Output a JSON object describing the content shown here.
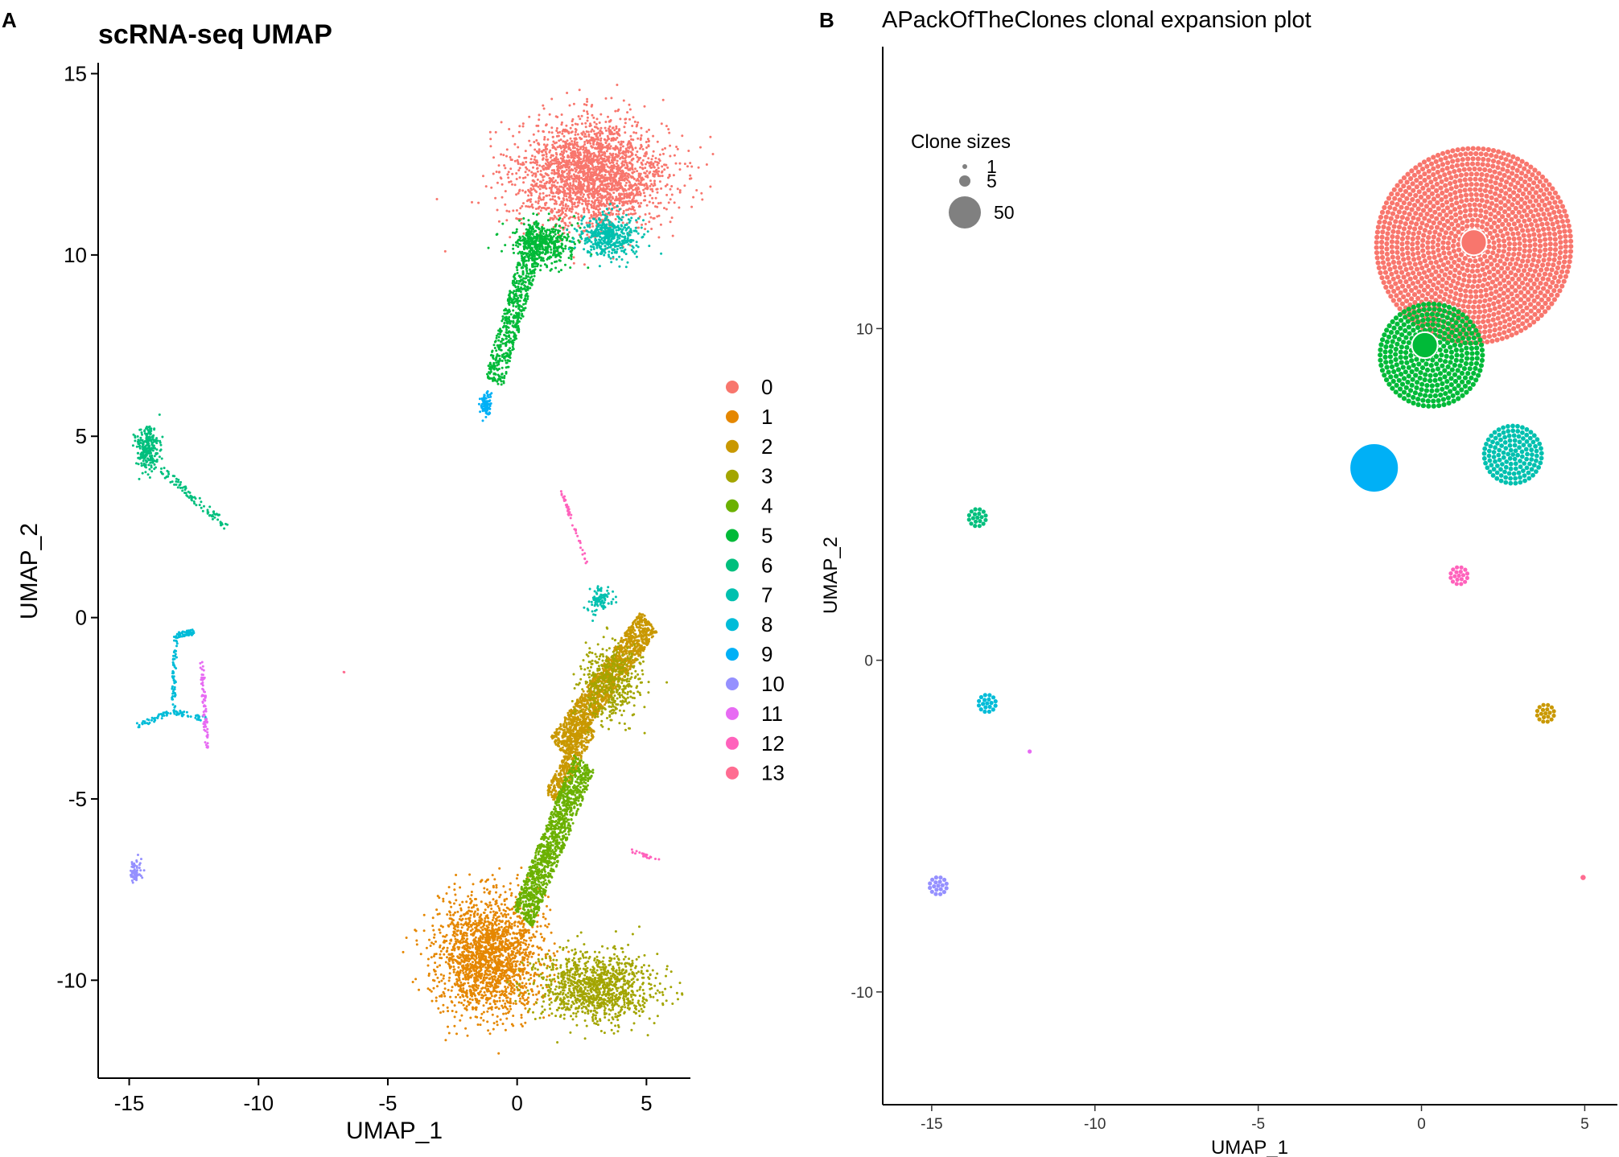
{
  "figure": {
    "panels": [
      {
        "letter": "A"
      },
      {
        "letter": "B"
      }
    ]
  },
  "cluster_colors": {
    "0": "#F8766D",
    "1": "#E58700",
    "2": "#C99800",
    "3": "#A3A500",
    "4": "#6BB100",
    "5": "#00BA38",
    "6": "#00BF7D",
    "7": "#00C0AF",
    "8": "#00BCD8",
    "9": "#00B0F6",
    "10": "#9590FF",
    "11": "#E76BF3",
    "12": "#FF62BC",
    "13": "#FF6C91"
  },
  "chart_data": [
    {
      "type": "scatter",
      "title": "scRNA-seq UMAP",
      "subtitle": "",
      "xlabel": "UMAP_1",
      "ylabel": "UMAP_2",
      "xlim": [
        -16.2,
        6.7
      ],
      "ylim": [
        -12.7,
        15.3
      ],
      "xticks": [
        -15,
        -10,
        -5,
        0,
        5
      ],
      "yticks": [
        -10,
        -5,
        0,
        5,
        10,
        15
      ],
      "xtick_labels": [
        "-15",
        "-10",
        "-5",
        "0",
        "5"
      ],
      "ytick_labels": [
        "-10",
        "-5",
        "0",
        "5",
        "10",
        "15"
      ],
      "grid": false,
      "legend": {
        "position": "right",
        "title": "",
        "entries": [
          "0",
          "1",
          "2",
          "3",
          "4",
          "5",
          "6",
          "7",
          "8",
          "9",
          "10",
          "11",
          "12",
          "13"
        ]
      },
      "series": [
        {
          "cluster": "0",
          "shape": "blob",
          "center": [
            2.9,
            12.2
          ],
          "spread": [
            2.9,
            1.5
          ],
          "n": 2400
        },
        {
          "cluster": "1",
          "shape": "blob",
          "center": [
            -1.1,
            -9.3
          ],
          "spread": [
            2.0,
            1.6
          ],
          "n": 1900
        },
        {
          "cluster": "2",
          "shape": "segment",
          "from": [
            1.6,
            -3.6
          ],
          "to": [
            5.1,
            -0.1
          ],
          "width": 0.85,
          "n": 1400
        },
        {
          "cluster": "2",
          "shape": "segment",
          "from": [
            1.3,
            -5.0
          ],
          "to": [
            2.8,
            -3.0
          ],
          "width": 0.6,
          "n": 400
        },
        {
          "cluster": "3",
          "shape": "blob",
          "center": [
            3.0,
            -10.2
          ],
          "spread": [
            2.3,
            0.95
          ],
          "n": 1100
        },
        {
          "cluster": "3",
          "shape": "blob",
          "center": [
            3.6,
            -1.8
          ],
          "spread": [
            1.2,
            1.0
          ],
          "n": 450
        },
        {
          "cluster": "4",
          "shape": "segment",
          "from": [
            0.2,
            -8.3
          ],
          "to": [
            2.6,
            -4.0
          ],
          "width": 0.9,
          "n": 1200
        },
        {
          "cluster": "5",
          "shape": "segment",
          "from": [
            -0.9,
            6.5
          ],
          "to": [
            0.8,
            10.7
          ],
          "width": 0.75,
          "n": 650
        },
        {
          "cluster": "5",
          "shape": "blob",
          "center": [
            1.0,
            10.3
          ],
          "spread": [
            1.2,
            0.6
          ],
          "n": 420
        },
        {
          "cluster": "6",
          "shape": "blob",
          "center": [
            -14.3,
            4.7
          ],
          "spread": [
            0.45,
            0.6
          ],
          "n": 260
        },
        {
          "cluster": "6",
          "shape": "segment",
          "from": [
            -13.8,
            4.1
          ],
          "to": [
            -11.2,
            2.5
          ],
          "width": 0.25,
          "n": 90
        },
        {
          "cluster": "7",
          "shape": "blob",
          "center": [
            3.5,
            10.5
          ],
          "spread": [
            1.1,
            0.6
          ],
          "n": 450
        },
        {
          "cluster": "7",
          "shape": "blob",
          "center": [
            3.2,
            0.5
          ],
          "spread": [
            0.5,
            0.4
          ],
          "n": 90
        },
        {
          "cluster": "8",
          "shape": "segment",
          "from": [
            -13.2,
            -0.5
          ],
          "to": [
            -12.5,
            -0.4
          ],
          "width": 0.15,
          "n": 60
        },
        {
          "cluster": "8",
          "shape": "segment",
          "from": [
            -13.2,
            -0.5
          ],
          "to": [
            -13.3,
            -2.6
          ],
          "width": 0.15,
          "n": 60
        },
        {
          "cluster": "8",
          "shape": "segment",
          "from": [
            -13.3,
            -2.6
          ],
          "to": [
            -14.8,
            -3.0
          ],
          "width": 0.15,
          "n": 40
        },
        {
          "cluster": "8",
          "shape": "segment",
          "from": [
            -13.3,
            -2.6
          ],
          "to": [
            -12.0,
            -2.8
          ],
          "width": 0.15,
          "n": 40
        },
        {
          "cluster": "9",
          "shape": "blob",
          "center": [
            -1.2,
            5.9
          ],
          "spread": [
            0.25,
            0.35
          ],
          "n": 90
        },
        {
          "cluster": "10",
          "shape": "blob",
          "center": [
            -14.8,
            -7.0
          ],
          "spread": [
            0.2,
            0.3
          ],
          "n": 70
        },
        {
          "cluster": "11",
          "shape": "segment",
          "from": [
            -12.2,
            -1.1
          ],
          "to": [
            -12.0,
            -3.6
          ],
          "width": 0.15,
          "n": 80
        },
        {
          "cluster": "12",
          "shape": "segment",
          "from": [
            1.7,
            3.5
          ],
          "to": [
            2.7,
            1.5
          ],
          "width": 0.1,
          "n": 45
        },
        {
          "cluster": "12",
          "shape": "segment",
          "from": [
            4.3,
            -6.4
          ],
          "to": [
            5.5,
            -6.7
          ],
          "width": 0.08,
          "n": 20
        },
        {
          "cluster": "13",
          "shape": "blob",
          "center": [
            -6.7,
            -1.5
          ],
          "spread": [
            0.03,
            0.03
          ],
          "n": 2
        }
      ]
    },
    {
      "type": "scatter",
      "title": "APackOfTheClones clonal expansion plot",
      "subtitle": "",
      "xlabel": "UMAP_1",
      "ylabel": "UMAP_2",
      "xlim": [
        -16.5,
        6.0
      ],
      "ylim": [
        -13.4,
        18.5
      ],
      "xticks": [
        -15,
        -10,
        -5,
        0,
        5
      ],
      "yticks": [
        -10,
        0,
        10
      ],
      "xtick_labels": [
        "-15",
        "-10",
        "-5",
        "0",
        "5"
      ],
      "ytick_labels": [
        "-10",
        "0",
        "10"
      ],
      "grid": false,
      "legend": {
        "position": "top-left",
        "title": "Clone sizes",
        "entries": [
          "1",
          "5",
          "50"
        ],
        "sizes": [
          1,
          5,
          50
        ]
      },
      "clusters": [
        {
          "cluster": "0",
          "x": 1.6,
          "y": 12.5,
          "radius": 3.15
        },
        {
          "cluster": "5",
          "x": 0.3,
          "y": 9.2,
          "radius": 1.65
        },
        {
          "cluster": "7",
          "x": 2.8,
          "y": 6.2,
          "radius": 1.05
        },
        {
          "cluster": "9",
          "x": -1.4,
          "y": 5.8,
          "radius": 0.55
        },
        {
          "cluster": "6",
          "x": -13.6,
          "y": 4.3,
          "radius": 0.3
        },
        {
          "cluster": "12",
          "x": 1.15,
          "y": 2.55,
          "radius": 0.35
        },
        {
          "cluster": "8",
          "x": -13.3,
          "y": -1.3,
          "radius": 0.3
        },
        {
          "cluster": "2",
          "x": 3.8,
          "y": -1.6,
          "radius": 0.35
        },
        {
          "cluster": "11",
          "x": -12.0,
          "y": -2.75,
          "radius": 0.12
        },
        {
          "cluster": "10",
          "x": -14.8,
          "y": -6.8,
          "radius": 0.3
        },
        {
          "cluster": "13",
          "x": 4.95,
          "y": -6.55,
          "radius": 0.08
        }
      ],
      "large_clones": [
        {
          "cluster": "0",
          "x": 1.6,
          "y": 12.6,
          "size": 5
        },
        {
          "cluster": "5",
          "x": 0.1,
          "y": 9.5,
          "size": 5
        },
        {
          "cluster": "9",
          "x": -1.45,
          "y": 5.8,
          "size": 50
        }
      ]
    }
  ]
}
